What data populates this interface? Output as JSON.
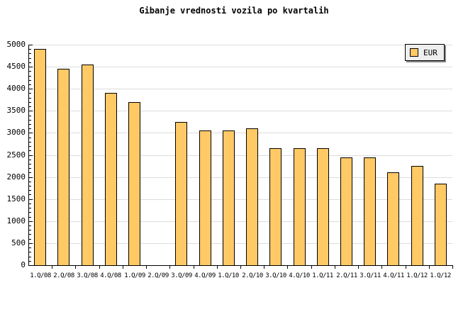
{
  "title": "Gibanje vrednosti vozila po kvartalih",
  "legend": {
    "label": "EUR",
    "position": "top-right"
  },
  "colors": {
    "background": "#FFFFFF",
    "bar_fill": "#FFC966",
    "bar_border": "#000000",
    "gridline": "#DCDCDC",
    "axis": "#000000",
    "legend_bg": "#EEEEEE",
    "legend_shadow": "#888888",
    "text": "#000000"
  },
  "chart_data": {
    "type": "bar",
    "title": "Gibanje vrednosti vozila po kvartalih",
    "categories": [
      "1.Q/08",
      "2.Q/08",
      "3.Q/08",
      "4.Q/08",
      "1.Q/09",
      "2.Q/09",
      "3.Q/09",
      "4.Q/09",
      "1.Q/10",
      "2.Q/10",
      "3.Q/10",
      "4.Q/10",
      "1.Q/11",
      "2.Q/11",
      "3.Q/11",
      "4.Q/11",
      "1.Q/12",
      "1.Q/12"
    ],
    "series": [
      {
        "name": "EUR",
        "values": [
          4900,
          4450,
          4550,
          3900,
          3700,
          null,
          3250,
          3050,
          3050,
          3100,
          2650,
          2650,
          2650,
          2450,
          2450,
          2100,
          2250,
          1850
        ]
      }
    ],
    "missing_categories": [
      "2.Q/09"
    ],
    "xlabel": "",
    "ylabel": "",
    "ylim": [
      0,
      5000
    ],
    "yticks": [
      0,
      500,
      1000,
      1500,
      2000,
      2500,
      3000,
      3500,
      4000,
      4500,
      5000
    ],
    "minor_ytick_interval": 100,
    "grid": "horizontal-major",
    "legend_position": "top-right"
  }
}
